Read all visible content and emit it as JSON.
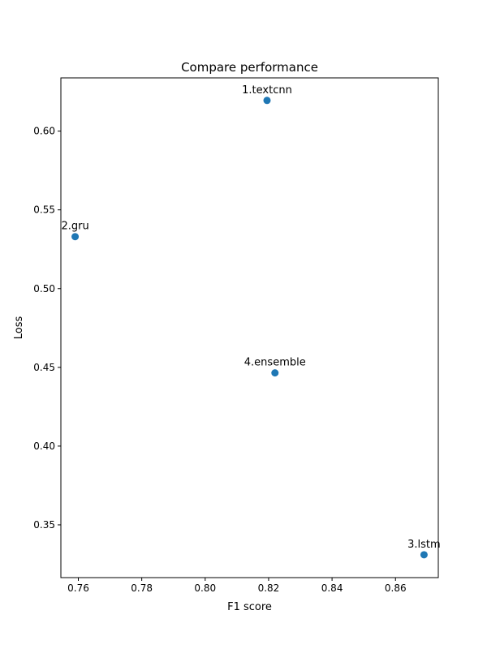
{
  "chart_data": {
    "type": "scatter",
    "title": "Compare performance",
    "xlabel": "F1 score",
    "ylabel": "Loss",
    "xlim": [
      0.7545,
      0.8735
    ],
    "ylim": [
      0.3165,
      0.6338
    ],
    "xticks": [
      "0.76",
      "0.78",
      "0.80",
      "0.82",
      "0.84",
      "0.86"
    ],
    "yticks": [
      "0.35",
      "0.40",
      "0.45",
      "0.50",
      "0.55",
      "0.60"
    ],
    "grid": false,
    "marker_color": "#1f77b4",
    "points": [
      {
        "label": "1.textcnn",
        "x": 0.8195,
        "y": 0.6195
      },
      {
        "label": "2.gru",
        "x": 0.759,
        "y": 0.533
      },
      {
        "label": "3.lstm",
        "x": 0.869,
        "y": 0.331
      },
      {
        "label": "4.ensemble",
        "x": 0.822,
        "y": 0.4465
      }
    ]
  }
}
